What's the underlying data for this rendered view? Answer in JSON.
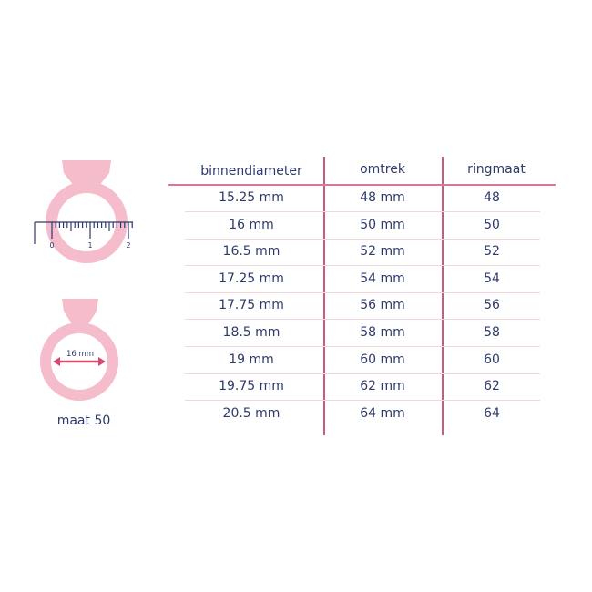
{
  "colors": {
    "text": "#2d3a6a",
    "ring": "#f5bccb",
    "accent_line": "#c95a80",
    "row_line": "#f2d6df",
    "arrow": "#d9476e"
  },
  "illustrations": {
    "ruler_labels": [
      "0",
      "1",
      "2"
    ],
    "diameter_label": "16 mm",
    "caption": "maat 50"
  },
  "table": {
    "headers": [
      "binnendiameter",
      "omtrek",
      "ringmaat"
    ],
    "rows": [
      [
        "15.25 mm",
        "48 mm",
        "48"
      ],
      [
        "16 mm",
        "50 mm",
        "50"
      ],
      [
        "16.5 mm",
        "52 mm",
        "52"
      ],
      [
        "17.25 mm",
        "54 mm",
        "54"
      ],
      [
        "17.75 mm",
        "56 mm",
        "56"
      ],
      [
        "18.5 mm",
        "58 mm",
        "58"
      ],
      [
        "19 mm",
        "60 mm",
        "60"
      ],
      [
        "19.75 mm",
        "62 mm",
        "62"
      ],
      [
        "20.5 mm",
        "64 mm",
        "64"
      ]
    ]
  }
}
